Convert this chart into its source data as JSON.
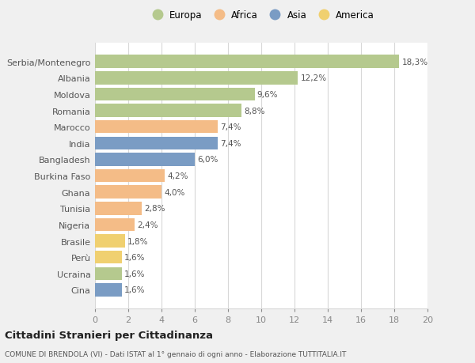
{
  "categories": [
    "Serbia/Montenegro",
    "Albania",
    "Moldova",
    "Romania",
    "Marocco",
    "India",
    "Bangladesh",
    "Burkina Faso",
    "Ghana",
    "Tunisia",
    "Nigeria",
    "Brasile",
    "Perù",
    "Ucraina",
    "Cina"
  ],
  "values": [
    18.3,
    12.2,
    9.6,
    8.8,
    7.4,
    7.4,
    6.0,
    4.2,
    4.0,
    2.8,
    2.4,
    1.8,
    1.6,
    1.6,
    1.6
  ],
  "labels": [
    "18,3%",
    "12,2%",
    "9,6%",
    "8,8%",
    "7,4%",
    "7,4%",
    "6,0%",
    "4,2%",
    "4,0%",
    "2,8%",
    "2,4%",
    "1,8%",
    "1,6%",
    "1,6%",
    "1,6%"
  ],
  "colors": [
    "#b5c98e",
    "#b5c98e",
    "#b5c98e",
    "#b5c98e",
    "#f4bc87",
    "#7a9cc4",
    "#7a9cc4",
    "#f4bc87",
    "#f4bc87",
    "#f4bc87",
    "#f4bc87",
    "#f0d070",
    "#f0d070",
    "#b5c98e",
    "#7a9cc4"
  ],
  "legend_labels": [
    "Europa",
    "Africa",
    "Asia",
    "America"
  ],
  "legend_colors": [
    "#b5c98e",
    "#f4bc87",
    "#7a9cc4",
    "#f0d070"
  ],
  "title": "Cittadini Stranieri per Cittadinanza",
  "subtitle": "COMUNE DI BRENDOLA (VI) - Dati ISTAT al 1° gennaio di ogni anno - Elaborazione TUTTITALIA.IT",
  "xlim": [
    0,
    20
  ],
  "xticks": [
    0,
    2,
    4,
    6,
    8,
    10,
    12,
    14,
    16,
    18,
    20
  ],
  "background_color": "#f0f0f0",
  "plot_bg_color": "#ffffff",
  "grid_color": "#d8d8d8",
  "label_color": "#555555",
  "tick_color": "#888888"
}
